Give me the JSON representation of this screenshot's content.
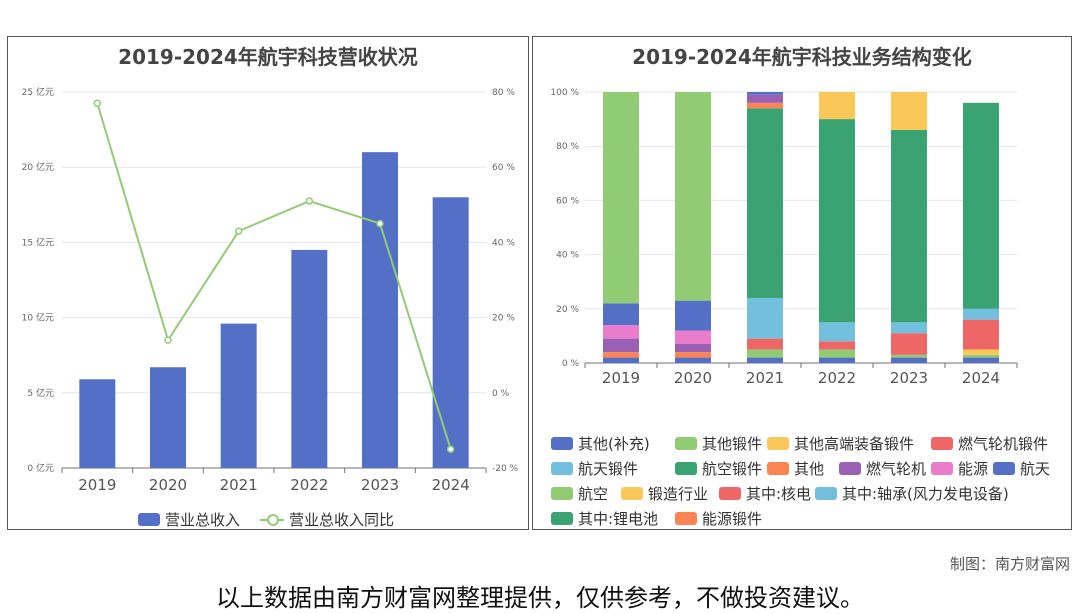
{
  "credit": "制图：南方财富网",
  "disclaimer": "以上数据由南方财富网整理提供，仅供参考，不做投资建议。",
  "chart_data": [
    {
      "type": "bar",
      "title": "2019-2024年航宇科技营收状况",
      "categories": [
        "2019",
        "2020",
        "2021",
        "2022",
        "2023",
        "2024"
      ],
      "y_left_ticks": [
        "0 亿元",
        "5 亿元",
        "10 亿元",
        "15 亿元",
        "20 亿元",
        "25 亿元"
      ],
      "y_right_ticks": [
        "-20 %",
        "0 %",
        "20 %",
        "40 %",
        "60 %",
        "80 %"
      ],
      "ylim": [
        0,
        25
      ],
      "y2lim": [
        -20,
        80
      ],
      "grid": true,
      "legend_position": "bottom",
      "series": [
        {
          "name": "营业总收入",
          "type": "bar",
          "color": "#5470c6",
          "values": [
            5.9,
            6.7,
            9.6,
            14.5,
            21.0,
            18.0
          ]
        },
        {
          "name": "营业总收入同比",
          "type": "line",
          "axis": "right",
          "color": "#91cc75",
          "values": [
            77,
            14,
            43,
            51,
            45,
            -15
          ]
        }
      ]
    },
    {
      "type": "bar",
      "stacked": true,
      "title": "2019-2024年航宇科技业务结构变化",
      "categories": [
        "2019",
        "2020",
        "2021",
        "2022",
        "2023",
        "2024"
      ],
      "y_ticks": [
        "0 %",
        "20 %",
        "40 %",
        "60 %",
        "80 %",
        "100 %"
      ],
      "ylim": [
        0,
        100
      ],
      "grid": true,
      "legend_position": "bottom",
      "series": [
        {
          "name": "其他(补充)",
          "color": "#5470c6",
          "values": [
            0,
            0,
            0,
            0,
            0,
            0
          ]
        },
        {
          "name": "其他锻件",
          "color": "#91cc75",
          "values": [
            0,
            0,
            0,
            0,
            0,
            0
          ]
        },
        {
          "name": "其他高端装备锻件",
          "color": "#fac858",
          "values": [
            0,
            0,
            0,
            0,
            0,
            0
          ]
        },
        {
          "name": "燃气轮机锻件",
          "color": "#ee6666",
          "values": [
            0,
            0,
            0,
            0,
            0,
            0
          ]
        },
        {
          "name": "航天锻件",
          "color": "#73c0de",
          "values": [
            0,
            0,
            0,
            0,
            0,
            0
          ]
        },
        {
          "name": "航空锻件",
          "color": "#3ba272",
          "values": [
            0,
            0,
            0,
            0,
            0,
            0
          ]
        },
        {
          "name": "其他",
          "color": "#fc8452",
          "values": [
            0,
            0,
            0,
            0,
            0,
            0
          ]
        },
        {
          "name": "燃气轮机",
          "color": "#9a60b4",
          "values": [
            0,
            0,
            0,
            0,
            0,
            0
          ]
        },
        {
          "name": "能源",
          "color": "#ea7ccc",
          "values": [
            0,
            0,
            0,
            0,
            0,
            0
          ]
        },
        {
          "name": "航天",
          "color": "#5470c6",
          "values": [
            0,
            0,
            0,
            0,
            0,
            0
          ]
        },
        {
          "name": "航空",
          "color": "#91cc75",
          "values": [
            0,
            0,
            0,
            0,
            0,
            0
          ]
        },
        {
          "name": "锻造行业",
          "color": "#fac858",
          "values": [
            0,
            0,
            0,
            0,
            0,
            0
          ]
        },
        {
          "name": "其中:核电",
          "color": "#ee6666",
          "values": [
            0,
            0,
            0,
            0,
            0,
            0
          ]
        },
        {
          "name": "其中:轴承(风力发电设备)",
          "color": "#73c0de",
          "values": [
            0,
            0,
            0,
            0,
            0,
            0
          ]
        },
        {
          "name": "其中:锂电池",
          "color": "#3ba272",
          "values": [
            0,
            0,
            0,
            0,
            0,
            0
          ]
        },
        {
          "name": "能源锻件",
          "color": "#fc8452",
          "values": [
            0,
            0,
            0,
            0,
            0,
            0
          ]
        }
      ],
      "stacks": [
        [
          [
            "航天",
            2
          ],
          [
            "其他",
            2
          ],
          [
            "燃气轮机",
            5
          ],
          [
            "能源",
            5
          ],
          [
            "航天",
            8
          ],
          [
            "航空",
            78
          ]
        ],
        [
          [
            "航天",
            2
          ],
          [
            "其他",
            2
          ],
          [
            "燃气轮机",
            3
          ],
          [
            "能源",
            5
          ],
          [
            "航天",
            11
          ],
          [
            "航空",
            77
          ]
        ],
        [
          [
            "其他(补充)",
            2
          ],
          [
            "其他锻件",
            3
          ],
          [
            "燃气轮机锻件",
            4
          ],
          [
            "航天锻件",
            15
          ],
          [
            "航空锻件",
            70
          ],
          [
            "能源锻件",
            2
          ],
          [
            "燃气轮机",
            3
          ],
          [
            "其他(补充)",
            1
          ]
        ],
        [
          [
            "其他(补充)",
            2
          ],
          [
            "其他锻件",
            3
          ],
          [
            "燃气轮机锻件",
            3
          ],
          [
            "航天锻件",
            7
          ],
          [
            "航空锻件",
            75
          ],
          [
            "其他高端装备锻件",
            10
          ]
        ],
        [
          [
            "其他(补充)",
            2
          ],
          [
            "其他锻件",
            1
          ],
          [
            "燃气轮机锻件",
            8
          ],
          [
            "航天锻件",
            4
          ],
          [
            "航空锻件",
            71
          ],
          [
            "其他高端装备锻件",
            14
          ]
        ],
        [
          [
            "其他(补充)",
            2
          ],
          [
            "其他锻件",
            1
          ],
          [
            "其他高端装备锻件",
            2
          ],
          [
            "燃气轮机锻件",
            11
          ],
          [
            "航天锻件",
            4
          ],
          [
            "航空锻件",
            76
          ]
        ]
      ]
    }
  ]
}
